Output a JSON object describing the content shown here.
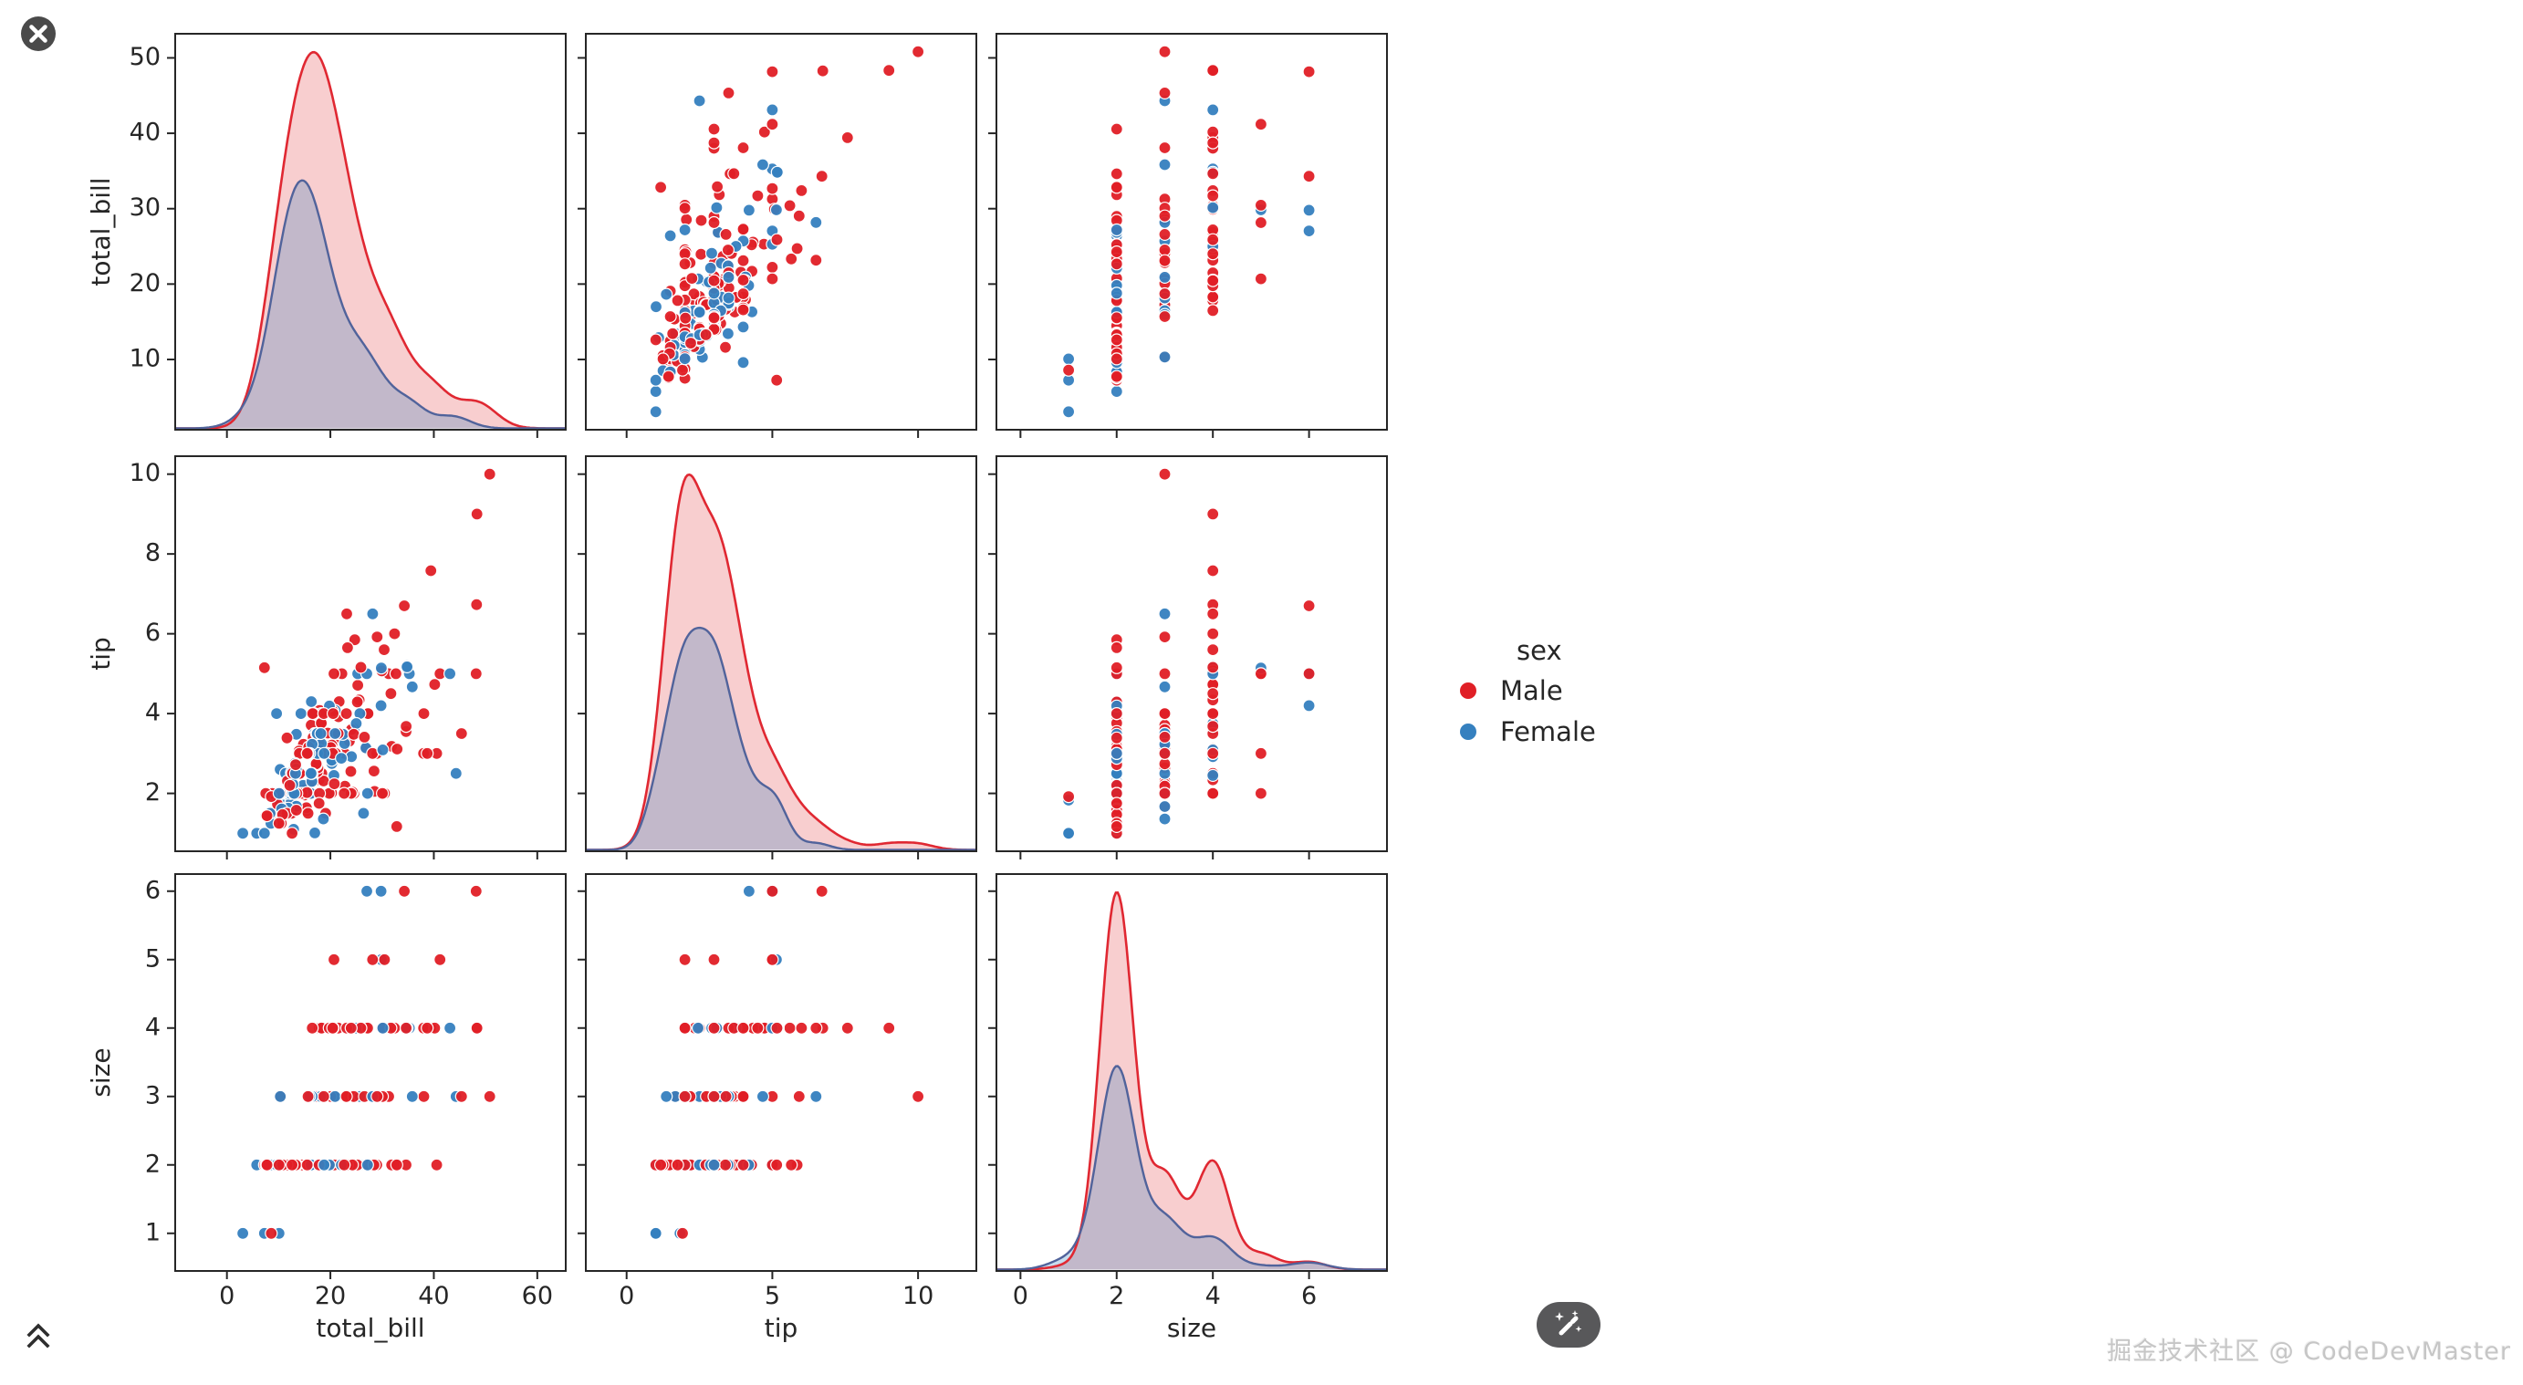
{
  "window": {
    "close_label": "close",
    "scroll_top_label": "scroll to top",
    "wand_label": "magic actions"
  },
  "watermark": "掘金技术社区 @ CodeDevMaster",
  "legend": {
    "title": "sex",
    "items": [
      {
        "label": "Male",
        "color": "#e01f26"
      },
      {
        "label": "Female",
        "color": "#3580bf"
      }
    ]
  },
  "chart_data": {
    "type": "scatter",
    "chart_kind": "pairplot",
    "variables": [
      "total_bill",
      "tip",
      "size"
    ],
    "diagonal": "kde",
    "grid": false,
    "legend_position": "right",
    "hue": {
      "name": "sex",
      "codes": {
        "M": "Male",
        "F": "Female"
      },
      "colors": {
        "M": "#e01f26",
        "F": "#3580bf"
      },
      "line_colors": {
        "M": "#e02832",
        "F": "#51639b"
      }
    },
    "x_ticks": {
      "total_bill": [
        0,
        20,
        40,
        60
      ],
      "tip": [
        0,
        5,
        10
      ],
      "size": [
        0,
        2,
        4,
        6
      ]
    },
    "y_ticks": {
      "total_bill": [
        10,
        20,
        30,
        40,
        50
      ],
      "tip": [
        2,
        4,
        6,
        8,
        10
      ],
      "size": [
        1,
        2,
        3,
        4,
        5,
        6
      ]
    },
    "x_ranges": {
      "total_bill": [
        -10,
        65.5
      ],
      "tip": [
        -1.4,
        12.0
      ],
      "size": [
        -0.5,
        7.62
      ]
    },
    "y_ranges": {
      "total_bill": [
        0.68,
        53.2
      ],
      "tip": [
        0.55,
        10.45
      ],
      "size": [
        0.45,
        6.25
      ]
    },
    "axis_text_color": "#262626",
    "samples_columns": [
      "total_bill",
      "tip",
      "size",
      "sex"
    ],
    "samples": [
      [
        16.99,
        1.01,
        2,
        "F"
      ],
      [
        10.34,
        1.66,
        3,
        "M"
      ],
      [
        21.01,
        3.5,
        3,
        "M"
      ],
      [
        23.68,
        3.31,
        2,
        "M"
      ],
      [
        24.59,
        3.61,
        4,
        "F"
      ],
      [
        25.29,
        4.71,
        4,
        "M"
      ],
      [
        8.77,
        2.0,
        2,
        "M"
      ],
      [
        26.88,
        3.12,
        4,
        "M"
      ],
      [
        15.04,
        1.96,
        2,
        "M"
      ],
      [
        14.78,
        3.23,
        2,
        "M"
      ],
      [
        10.27,
        1.71,
        2,
        "M"
      ],
      [
        35.26,
        5.0,
        4,
        "F"
      ],
      [
        15.42,
        1.57,
        2,
        "M"
      ],
      [
        18.43,
        3.0,
        4,
        "M"
      ],
      [
        14.83,
        3.02,
        2,
        "F"
      ],
      [
        21.58,
        3.92,
        2,
        "M"
      ],
      [
        10.33,
        1.67,
        3,
        "F"
      ],
      [
        16.29,
        3.71,
        3,
        "M"
      ],
      [
        16.97,
        3.5,
        3,
        "F"
      ],
      [
        20.65,
        3.35,
        3,
        "M"
      ],
      [
        17.92,
        4.08,
        2,
        "M"
      ],
      [
        20.29,
        2.75,
        2,
        "F"
      ],
      [
        15.77,
        2.23,
        2,
        "F"
      ],
      [
        39.42,
        7.58,
        4,
        "M"
      ],
      [
        19.82,
        3.18,
        2,
        "M"
      ],
      [
        17.81,
        2.34,
        4,
        "M"
      ],
      [
        13.37,
        2.0,
        2,
        "M"
      ],
      [
        12.69,
        2.0,
        2,
        "M"
      ],
      [
        21.7,
        4.3,
        2,
        "M"
      ],
      [
        19.65,
        3.0,
        2,
        "F"
      ],
      [
        9.55,
        1.45,
        2,
        "M"
      ],
      [
        18.35,
        2.5,
        4,
        "M"
      ],
      [
        15.06,
        3.0,
        2,
        "F"
      ],
      [
        20.69,
        2.45,
        4,
        "F"
      ],
      [
        17.78,
        3.27,
        2,
        "M"
      ],
      [
        24.06,
        3.6,
        3,
        "M"
      ],
      [
        16.31,
        2.0,
        3,
        "M"
      ],
      [
        16.93,
        3.07,
        3,
        "F"
      ],
      [
        18.69,
        2.31,
        3,
        "M"
      ],
      [
        31.27,
        5.0,
        3,
        "M"
      ],
      [
        16.04,
        2.24,
        3,
        "M"
      ],
      [
        17.46,
        2.54,
        2,
        "M"
      ],
      [
        13.94,
        3.06,
        2,
        "M"
      ],
      [
        9.68,
        1.32,
        2,
        "M"
      ],
      [
        30.4,
        5.6,
        4,
        "M"
      ],
      [
        18.29,
        3.0,
        2,
        "M"
      ],
      [
        22.23,
        5.0,
        2,
        "M"
      ],
      [
        32.4,
        6.0,
        4,
        "M"
      ],
      [
        28.55,
        2.05,
        3,
        "M"
      ],
      [
        18.04,
        3.0,
        2,
        "M"
      ],
      [
        12.54,
        2.5,
        2,
        "M"
      ],
      [
        10.29,
        2.6,
        2,
        "F"
      ],
      [
        34.81,
        5.2,
        4,
        "F"
      ],
      [
        9.94,
        1.56,
        2,
        "M"
      ],
      [
        25.56,
        4.34,
        4,
        "M"
      ],
      [
        19.49,
        3.51,
        2,
        "M"
      ],
      [
        38.01,
        3.0,
        4,
        "M"
      ],
      [
        26.41,
        1.5,
        2,
        "F"
      ],
      [
        11.24,
        1.76,
        2,
        "M"
      ],
      [
        48.27,
        6.73,
        4,
        "M"
      ],
      [
        20.29,
        3.21,
        2,
        "M"
      ],
      [
        13.81,
        2.0,
        2,
        "M"
      ],
      [
        11.02,
        1.98,
        2,
        "M"
      ],
      [
        18.29,
        3.76,
        4,
        "M"
      ],
      [
        17.59,
        2.64,
        3,
        "M"
      ],
      [
        20.08,
        3.15,
        3,
        "M"
      ],
      [
        16.45,
        2.47,
        2,
        "F"
      ],
      [
        3.07,
        1.0,
        1,
        "F"
      ],
      [
        20.23,
        2.01,
        2,
        "M"
      ],
      [
        15.01,
        2.09,
        2,
        "M"
      ],
      [
        12.02,
        1.97,
        2,
        "M"
      ],
      [
        17.07,
        3.0,
        3,
        "F"
      ],
      [
        26.86,
        3.14,
        2,
        "F"
      ],
      [
        25.28,
        5.0,
        2,
        "F"
      ],
      [
        14.73,
        2.2,
        2,
        "F"
      ],
      [
        10.51,
        1.25,
        2,
        "M"
      ],
      [
        17.92,
        3.08,
        2,
        "M"
      ],
      [
        27.2,
        4.0,
        4,
        "M"
      ],
      [
        22.76,
        3.0,
        2,
        "M"
      ],
      [
        17.29,
        2.71,
        2,
        "M"
      ],
      [
        19.44,
        3.0,
        2,
        "M"
      ],
      [
        16.66,
        3.4,
        2,
        "M"
      ],
      [
        10.07,
        1.83,
        1,
        "F"
      ],
      [
        32.68,
        5.0,
        2,
        "M"
      ],
      [
        15.98,
        2.03,
        2,
        "M"
      ],
      [
        34.83,
        5.17,
        4,
        "F"
      ],
      [
        13.03,
        2.0,
        2,
        "M"
      ],
      [
        18.28,
        4.0,
        2,
        "M"
      ],
      [
        24.71,
        5.85,
        2,
        "M"
      ],
      [
        21.16,
        3.0,
        2,
        "M"
      ],
      [
        28.97,
        3.0,
        2,
        "M"
      ],
      [
        22.49,
        3.5,
        2,
        "M"
      ],
      [
        5.75,
        1.0,
        2,
        "F"
      ],
      [
        16.32,
        4.3,
        2,
        "F"
      ],
      [
        22.75,
        3.25,
        2,
        "F"
      ],
      [
        40.17,
        4.73,
        4,
        "M"
      ],
      [
        27.28,
        4.0,
        2,
        "M"
      ],
      [
        12.03,
        1.5,
        2,
        "M"
      ],
      [
        21.01,
        3.0,
        2,
        "M"
      ],
      [
        12.46,
        1.5,
        2,
        "M"
      ],
      [
        11.35,
        2.5,
        2,
        "F"
      ],
      [
        15.38,
        3.0,
        2,
        "F"
      ],
      [
        44.3,
        2.5,
        3,
        "F"
      ],
      [
        22.42,
        3.48,
        2,
        "F"
      ],
      [
        20.92,
        4.08,
        2,
        "F"
      ],
      [
        15.36,
        1.64,
        2,
        "M"
      ],
      [
        20.49,
        4.06,
        2,
        "M"
      ],
      [
        25.21,
        4.29,
        2,
        "M"
      ],
      [
        18.24,
        3.76,
        2,
        "M"
      ],
      [
        14.31,
        4.0,
        2,
        "F"
      ],
      [
        14.0,
        3.0,
        2,
        "M"
      ],
      [
        7.25,
        1.0,
        1,
        "F"
      ],
      [
        38.07,
        4.0,
        3,
        "M"
      ],
      [
        23.95,
        2.55,
        2,
        "M"
      ],
      [
        25.71,
        4.0,
        3,
        "F"
      ],
      [
        17.31,
        3.5,
        2,
        "F"
      ],
      [
        29.93,
        5.07,
        4,
        "M"
      ],
      [
        10.65,
        1.5,
        2,
        "F"
      ],
      [
        12.43,
        1.8,
        2,
        "F"
      ],
      [
        24.08,
        2.92,
        4,
        "F"
      ],
      [
        11.69,
        2.31,
        2,
        "M"
      ],
      [
        13.42,
        1.68,
        2,
        "F"
      ],
      [
        14.26,
        2.5,
        2,
        "M"
      ],
      [
        15.95,
        2.0,
        2,
        "M"
      ],
      [
        12.48,
        2.52,
        2,
        "F"
      ],
      [
        29.8,
        4.2,
        6,
        "F"
      ],
      [
        8.52,
        1.48,
        2,
        "M"
      ],
      [
        14.52,
        2.0,
        2,
        "F"
      ],
      [
        11.38,
        2.0,
        2,
        "F"
      ],
      [
        22.82,
        2.18,
        3,
        "M"
      ],
      [
        19.08,
        1.5,
        2,
        "M"
      ],
      [
        20.27,
        2.83,
        2,
        "F"
      ],
      [
        11.17,
        1.5,
        2,
        "F"
      ],
      [
        12.26,
        2.0,
        2,
        "F"
      ],
      [
        18.26,
        3.25,
        2,
        "F"
      ],
      [
        8.51,
        1.25,
        2,
        "F"
      ],
      [
        10.33,
        2.0,
        2,
        "F"
      ],
      [
        14.15,
        2.0,
        2,
        "F"
      ],
      [
        16.0,
        2.0,
        2,
        "M"
      ],
      [
        13.16,
        2.75,
        2,
        "F"
      ],
      [
        17.47,
        3.5,
        2,
        "F"
      ],
      [
        34.3,
        6.7,
        6,
        "M"
      ],
      [
        41.19,
        5.0,
        5,
        "M"
      ],
      [
        27.05,
        5.0,
        6,
        "F"
      ],
      [
        16.43,
        2.3,
        2,
        "F"
      ],
      [
        8.35,
        1.5,
        2,
        "F"
      ],
      [
        18.64,
        1.36,
        3,
        "F"
      ],
      [
        11.87,
        1.63,
        2,
        "F"
      ],
      [
        9.78,
        1.73,
        2,
        "M"
      ],
      [
        7.51,
        2.0,
        2,
        "M"
      ],
      [
        14.07,
        2.5,
        2,
        "M"
      ],
      [
        13.13,
        2.0,
        2,
        "M"
      ],
      [
        17.26,
        2.74,
        3,
        "M"
      ],
      [
        24.55,
        2.0,
        4,
        "M"
      ],
      [
        19.77,
        2.0,
        4,
        "M"
      ],
      [
        29.85,
        5.14,
        5,
        "F"
      ],
      [
        48.17,
        5.0,
        6,
        "M"
      ],
      [
        25.0,
        3.75,
        4,
        "F"
      ],
      [
        13.39,
        2.61,
        2,
        "F"
      ],
      [
        16.49,
        2.0,
        4,
        "M"
      ],
      [
        21.5,
        3.5,
        4,
        "M"
      ],
      [
        12.66,
        2.5,
        2,
        "M"
      ],
      [
        16.21,
        2.0,
        3,
        "F"
      ],
      [
        13.81,
        2.0,
        2,
        "M"
      ],
      [
        17.51,
        3.0,
        2,
        "F"
      ],
      [
        24.52,
        3.48,
        3,
        "M"
      ],
      [
        20.76,
        2.24,
        2,
        "M"
      ],
      [
        31.71,
        4.5,
        4,
        "M"
      ],
      [
        10.59,
        1.61,
        2,
        "F"
      ],
      [
        10.63,
        2.0,
        2,
        "F"
      ],
      [
        50.81,
        10.0,
        3,
        "M"
      ],
      [
        15.81,
        3.16,
        2,
        "M"
      ],
      [
        7.25,
        5.15,
        2,
        "M"
      ],
      [
        31.85,
        3.18,
        2,
        "M"
      ],
      [
        16.82,
        4.0,
        2,
        "M"
      ],
      [
        32.9,
        3.11,
        2,
        "M"
      ],
      [
        17.89,
        2.0,
        2,
        "M"
      ],
      [
        14.48,
        2.0,
        2,
        "M"
      ],
      [
        9.6,
        4.0,
        2,
        "F"
      ],
      [
        34.63,
        3.55,
        2,
        "M"
      ],
      [
        34.65,
        3.68,
        4,
        "M"
      ],
      [
        23.33,
        5.65,
        2,
        "M"
      ],
      [
        45.35,
        3.5,
        3,
        "M"
      ],
      [
        23.17,
        6.5,
        4,
        "M"
      ],
      [
        40.55,
        3.0,
        2,
        "M"
      ],
      [
        20.69,
        5.0,
        5,
        "M"
      ],
      [
        20.9,
        3.5,
        3,
        "F"
      ],
      [
        30.46,
        2.0,
        5,
        "M"
      ],
      [
        18.15,
        3.5,
        3,
        "F"
      ],
      [
        23.1,
        4.0,
        3,
        "M"
      ],
      [
        15.69,
        1.5,
        2,
        "M"
      ],
      [
        19.81,
        4.19,
        2,
        "F"
      ],
      [
        28.44,
        2.56,
        2,
        "M"
      ],
      [
        15.48,
        2.02,
        2,
        "M"
      ],
      [
        16.58,
        4.0,
        2,
        "M"
      ],
      [
        7.56,
        1.44,
        2,
        "M"
      ],
      [
        10.34,
        2.0,
        2,
        "M"
      ],
      [
        43.11,
        5.0,
        4,
        "F"
      ],
      [
        13.0,
        2.0,
        2,
        "F"
      ],
      [
        13.51,
        2.0,
        2,
        "M"
      ],
      [
        18.71,
        4.0,
        3,
        "M"
      ],
      [
        12.74,
        2.01,
        2,
        "F"
      ],
      [
        13.0,
        2.0,
        2,
        "F"
      ],
      [
        16.4,
        2.5,
        2,
        "F"
      ],
      [
        20.53,
        4.0,
        4,
        "M"
      ],
      [
        16.47,
        3.23,
        3,
        "F"
      ],
      [
        26.59,
        3.41,
        3,
        "M"
      ],
      [
        38.73,
        3.0,
        4,
        "M"
      ],
      [
        24.27,
        2.03,
        2,
        "M"
      ],
      [
        12.76,
        2.23,
        2,
        "F"
      ],
      [
        30.06,
        2.0,
        3,
        "M"
      ],
      [
        25.89,
        5.16,
        4,
        "M"
      ],
      [
        48.33,
        9.0,
        4,
        "M"
      ],
      [
        13.27,
        2.5,
        2,
        "F"
      ],
      [
        28.17,
        6.5,
        3,
        "F"
      ],
      [
        12.9,
        1.1,
        2,
        "F"
      ],
      [
        28.15,
        3.0,
        5,
        "M"
      ],
      [
        11.59,
        1.5,
        2,
        "M"
      ],
      [
        7.74,
        1.44,
        2,
        "M"
      ],
      [
        30.14,
        3.09,
        4,
        "F"
      ],
      [
        12.16,
        2.2,
        2,
        "M"
      ],
      [
        13.42,
        3.48,
        2,
        "F"
      ],
      [
        8.58,
        1.92,
        1,
        "M"
      ],
      [
        15.98,
        3.0,
        3,
        "F"
      ],
      [
        13.42,
        1.58,
        2,
        "M"
      ],
      [
        16.27,
        2.5,
        2,
        "F"
      ],
      [
        10.09,
        2.0,
        2,
        "F"
      ],
      [
        20.45,
        3.0,
        4,
        "M"
      ],
      [
        13.28,
        2.72,
        2,
        "M"
      ],
      [
        22.12,
        2.88,
        2,
        "F"
      ],
      [
        24.01,
        2.0,
        4,
        "M"
      ],
      [
        15.69,
        3.0,
        3,
        "M"
      ],
      [
        11.61,
        3.39,
        2,
        "M"
      ],
      [
        10.77,
        1.47,
        2,
        "M"
      ],
      [
        15.53,
        3.0,
        2,
        "M"
      ],
      [
        10.07,
        1.25,
        2,
        "M"
      ],
      [
        12.6,
        1.0,
        2,
        "M"
      ],
      [
        32.83,
        1.17,
        2,
        "M"
      ],
      [
        35.83,
        4.67,
        3,
        "F"
      ],
      [
        29.03,
        5.92,
        3,
        "M"
      ],
      [
        27.18,
        2.0,
        2,
        "F"
      ],
      [
        22.67,
        2.0,
        2,
        "M"
      ],
      [
        17.82,
        1.75,
        2,
        "M"
      ],
      [
        18.78,
        3.0,
        2,
        "F"
      ]
    ]
  }
}
